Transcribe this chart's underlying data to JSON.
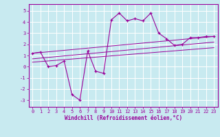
{
  "x": [
    0,
    1,
    2,
    3,
    4,
    5,
    6,
    7,
    8,
    9,
    10,
    11,
    12,
    13,
    14,
    15,
    16,
    17,
    18,
    19,
    20,
    21,
    22,
    23
  ],
  "y_curve": [
    1.2,
    1.3,
    0.0,
    0.1,
    0.5,
    -2.5,
    -3.0,
    1.4,
    -0.4,
    -0.6,
    4.2,
    4.8,
    4.1,
    4.3,
    4.1,
    4.8,
    3.0,
    2.5,
    1.9,
    2.0,
    2.6,
    2.6,
    2.7,
    2.7
  ],
  "line1_x": [
    0,
    23
  ],
  "line1_y": [
    1.2,
    2.7
  ],
  "line2_x": [
    0,
    23
  ],
  "line2_y": [
    0.7,
    2.2
  ],
  "line3_x": [
    0,
    23
  ],
  "line3_y": [
    0.4,
    1.7
  ],
  "color": "#990099",
  "bg_color": "#c8eaf0",
  "xlabel": "Windchill (Refroidissement éolien,°C)",
  "yticks": [
    -3,
    -2,
    -1,
    0,
    1,
    2,
    3,
    4,
    5
  ],
  "xticks": [
    0,
    1,
    2,
    3,
    4,
    5,
    6,
    7,
    8,
    9,
    10,
    11,
    12,
    13,
    14,
    15,
    16,
    17,
    18,
    19,
    20,
    21,
    22,
    23
  ],
  "ylim": [
    -3.6,
    5.6
  ],
  "xlim": [
    -0.5,
    23.5
  ],
  "tick_fontsize": 5.0,
  "xlabel_fontsize": 5.5,
  "grid_color": "white",
  "grid_lw": 0.7
}
